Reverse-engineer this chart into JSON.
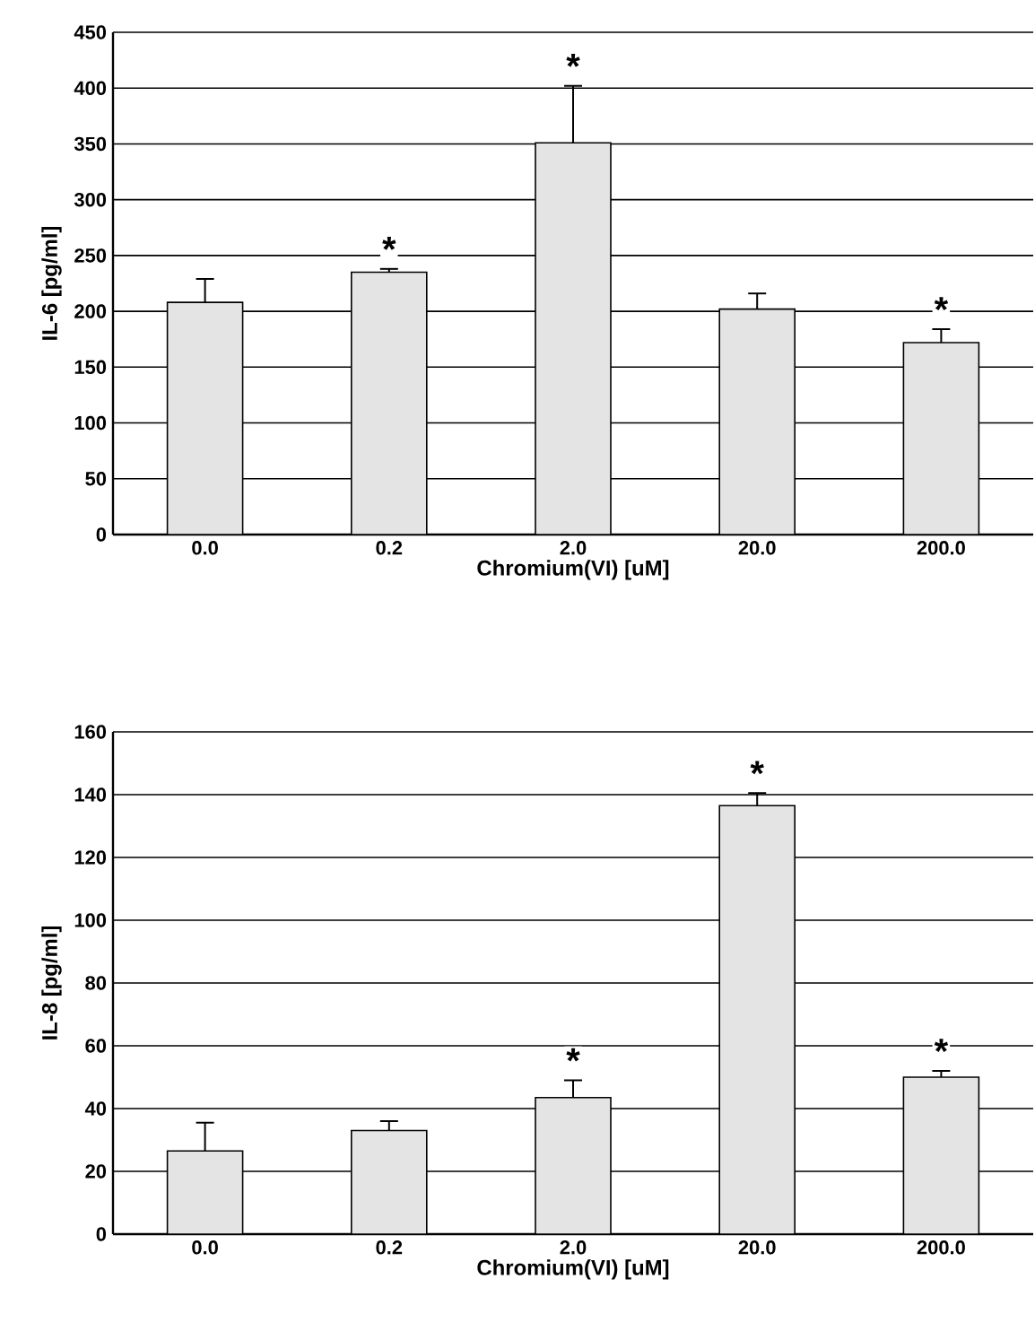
{
  "chart_data": [
    {
      "type": "bar",
      "categories": [
        "0.0",
        "0.2",
        "2.0",
        "20.0",
        "200.0"
      ],
      "xlabel": "Chromium(VI) [uM]",
      "ylabel": "IL-6 [pg/ml]",
      "color": "#e4e4e4",
      "values": [
        208,
        235,
        351,
        202,
        172
      ],
      "errors": [
        21,
        3,
        51,
        14,
        12
      ],
      "ylim": [
        0,
        450
      ],
      "yticks": [
        0,
        50,
        100,
        150,
        200,
        250,
        300,
        350,
        400,
        450
      ],
      "grid": "y",
      "annotations": [
        {
          "text": "*",
          "x": "0.2",
          "y": 238
        },
        {
          "text": "*",
          "x": "2.0",
          "y": 402
        },
        {
          "text": "*",
          "x": "200.0",
          "y": 184
        }
      ]
    },
    {
      "type": "bar",
      "categories": [
        "0.0",
        "0.2",
        "2.0",
        "20.0",
        "200.0"
      ],
      "xlabel": "Chromium(VI) [uM]",
      "ylabel": "IL-8 [pg/ml]",
      "color": "#e4e4e4",
      "values": [
        26.5,
        33,
        43.5,
        136.5,
        50
      ],
      "errors": [
        9,
        3,
        5.5,
        4,
        2
      ],
      "ylim": [
        0,
        160
      ],
      "yticks": [
        0,
        20,
        40,
        60,
        80,
        100,
        120,
        140,
        160
      ],
      "grid": "y",
      "annotations": [
        {
          "text": "*",
          "x": "2.0",
          "y": 49
        },
        {
          "text": "*",
          "x": "20.0",
          "y": 140.5
        },
        {
          "text": "*",
          "x": "200.0",
          "y": 52
        }
      ]
    }
  ]
}
